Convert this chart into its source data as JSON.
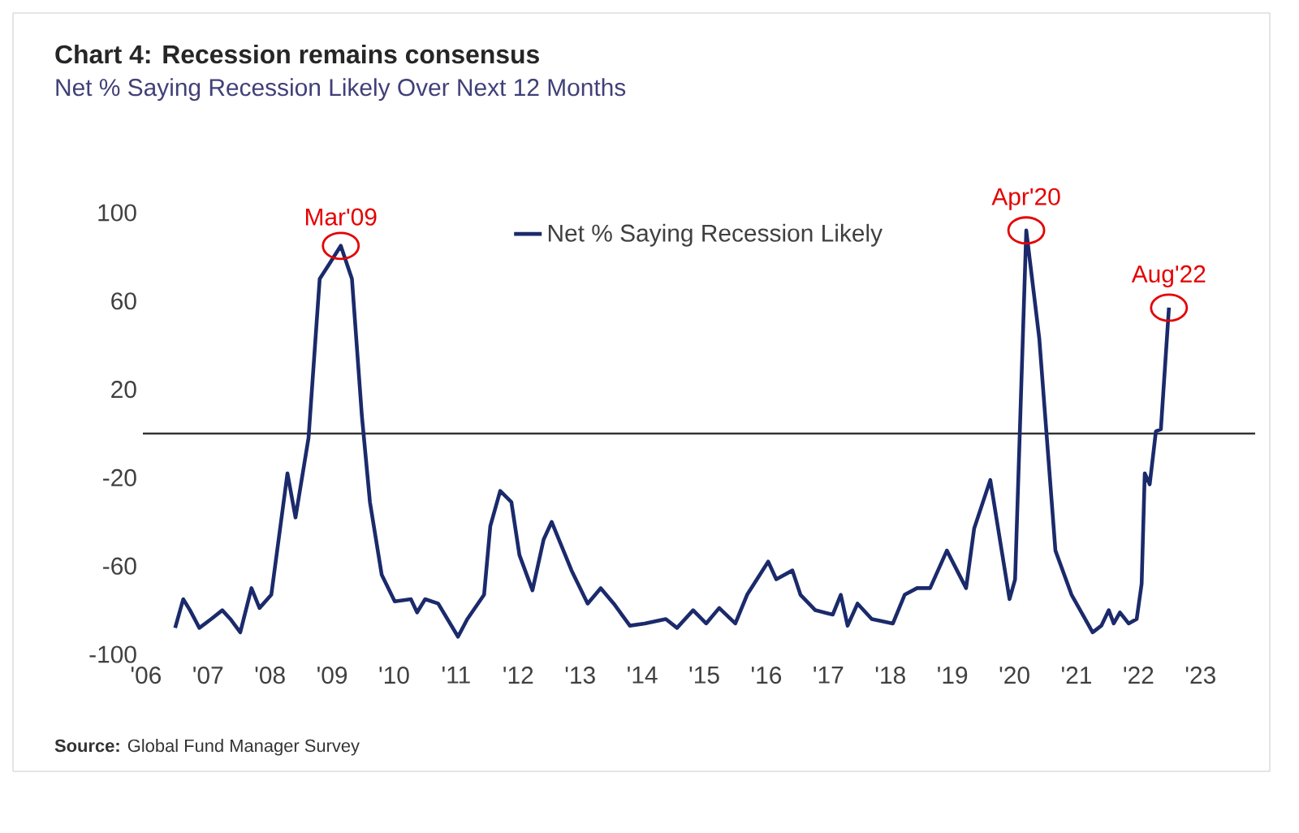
{
  "chart_data": {
    "type": "line",
    "title": "Chart 4: Recession remains consensus",
    "subtitle": "Net % Saying Recession Likely Over Next 12 Months",
    "x": [
      2006.47,
      2006.6,
      2006.71,
      2006.86,
      2007.05,
      2007.23,
      2007.36,
      2007.52,
      2007.7,
      2007.83,
      2008.02,
      2008.28,
      2008.41,
      2008.62,
      2008.8,
      2008.96,
      2009.14,
      2009.32,
      2009.48,
      2009.61,
      2009.8,
      2010.01,
      2010.27,
      2010.37,
      2010.5,
      2010.71,
      2011.03,
      2011.18,
      2011.45,
      2011.55,
      2011.71,
      2011.89,
      2012.02,
      2012.23,
      2012.41,
      2012.54,
      2012.86,
      2013.12,
      2013.33,
      2013.54,
      2013.8,
      2014.04,
      2014.38,
      2014.56,
      2014.82,
      2015.03,
      2015.24,
      2015.5,
      2015.69,
      2016.03,
      2016.16,
      2016.42,
      2016.55,
      2016.79,
      2017.07,
      2017.2,
      2017.31,
      2017.47,
      2017.7,
      2018.04,
      2018.23,
      2018.43,
      2018.64,
      2018.91,
      2019.22,
      2019.35,
      2019.61,
      2019.92,
      2020.01,
      2020.19,
      2020.4,
      2020.66,
      2020.92,
      2021.26,
      2021.4,
      2021.52,
      2021.6,
      2021.7,
      2021.84,
      2021.97,
      2022.05,
      2022.1,
      2022.18,
      2022.28,
      2022.36,
      2022.49
    ],
    "series": [
      {
        "name": "Net % Saying Recession Likely",
        "color": "#1b2a6b",
        "values": [
          -88,
          -75,
          -80,
          -88,
          -84,
          -80,
          -84,
          -90,
          -70,
          -79,
          -73,
          -18,
          -38,
          -2,
          70,
          77,
          85,
          70,
          8,
          -31,
          -64,
          -76,
          -75,
          -81,
          -75,
          -77,
          -92,
          -84,
          -73,
          -42,
          -26,
          -31,
          -55,
          -71,
          -48,
          -40,
          -62,
          -77,
          -70,
          -77,
          -87,
          -86,
          -84,
          -88,
          -80,
          -86,
          -79,
          -86,
          -73,
          -58,
          -66,
          -62,
          -73,
          -80,
          -82,
          -73,
          -87,
          -77,
          -84,
          -86,
          -73,
          -70,
          -70,
          -53,
          -70,
          -43,
          -21,
          -75,
          -66,
          92,
          43,
          -53,
          -73,
          -90,
          -87,
          -80,
          -86,
          -81,
          -86,
          -84,
          -68,
          -18,
          -23,
          1,
          2,
          57
        ]
      }
    ],
    "xlim": [
      2005.95,
      2023.88
    ],
    "ylim": [
      -100,
      100
    ],
    "xticks": [
      {
        "value": 2006,
        "label": "'06"
      },
      {
        "value": 2007,
        "label": "'07"
      },
      {
        "value": 2008,
        "label": "'08"
      },
      {
        "value": 2009,
        "label": "'09"
      },
      {
        "value": 2010,
        "label": "'10"
      },
      {
        "value": 2011,
        "label": "'11"
      },
      {
        "value": 2012,
        "label": "'12"
      },
      {
        "value": 2013,
        "label": "'13"
      },
      {
        "value": 2014,
        "label": "'14"
      },
      {
        "value": 2015,
        "label": "'15"
      },
      {
        "value": 2016,
        "label": "'16"
      },
      {
        "value": 2017,
        "label": "'17"
      },
      {
        "value": 2018,
        "label": "'18"
      },
      {
        "value": 2019,
        "label": "'19"
      },
      {
        "value": 2020,
        "label": "'20"
      },
      {
        "value": 2021,
        "label": "'21"
      },
      {
        "value": 2022,
        "label": "'22"
      },
      {
        "value": 2023,
        "label": "'23"
      }
    ],
    "yticks": [
      -100,
      -60,
      -20,
      20,
      60,
      100
    ],
    "ref_lines": [
      {
        "axis": "y",
        "value": 0,
        "color": "#333333"
      }
    ],
    "annotations": [
      {
        "text": "Mar'09",
        "x": 2009.14,
        "y": 85
      },
      {
        "text": "Apr'20",
        "x": 2020.19,
        "y": 92
      },
      {
        "text": "Aug'22",
        "x": 2022.49,
        "y": 57
      },
      "**Source:** Global Fund Manager Survey"
    ],
    "legend": "top",
    "grid": false,
    "line_style": "solid",
    "marker": "none"
  }
}
